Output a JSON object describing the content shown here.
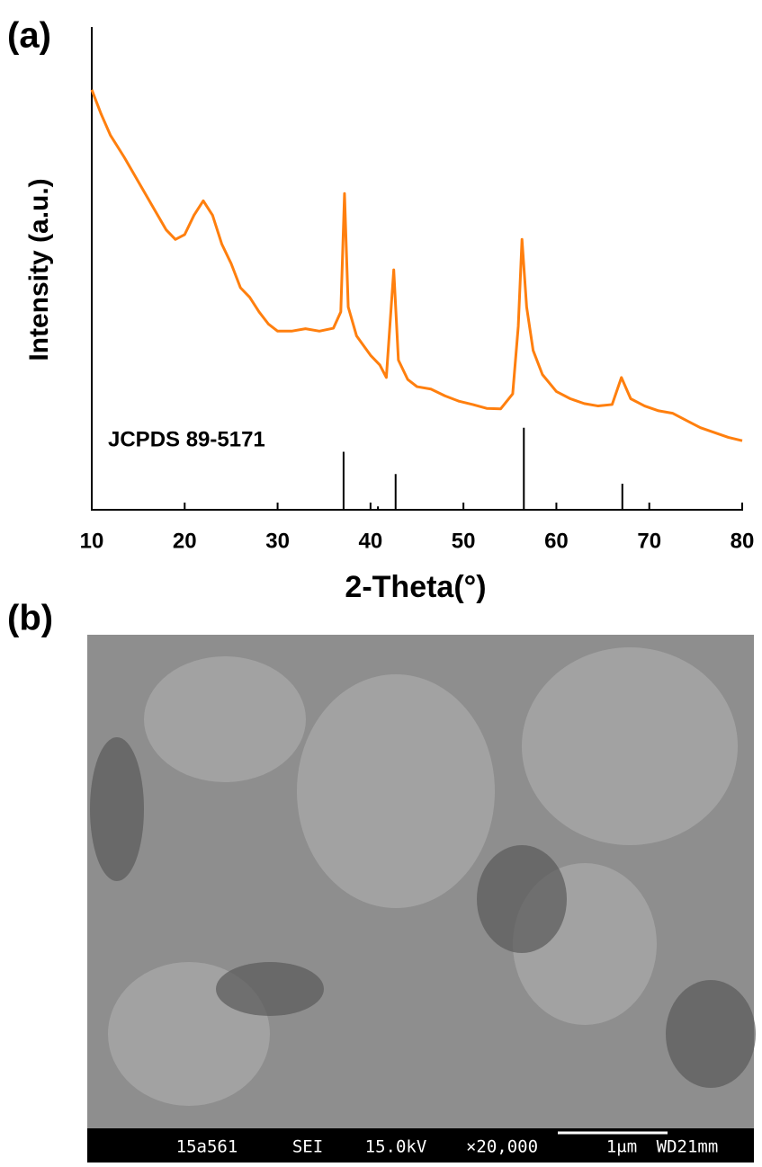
{
  "chart_data": {
    "type": "line",
    "xlabel": "2-Theta(°)",
    "ylabel": "Intensity (a.u.)",
    "xlim": [
      10,
      80
    ],
    "xticks": [
      10,
      20,
      30,
      40,
      50,
      60,
      70,
      80
    ],
    "ylim": [
      0,
      100
    ],
    "series": [
      {
        "color": "#ff7f0e",
        "x": [
          10,
          11,
          12,
          13.5,
          15,
          16.5,
          18,
          19,
          20,
          21,
          22,
          23,
          24,
          25,
          26,
          27,
          28,
          29,
          30,
          31.5,
          33,
          34.5,
          36,
          36.8,
          37.2,
          37.6,
          38.5,
          40,
          41,
          41.7,
          42.5,
          43,
          44,
          45,
          46.5,
          48,
          49.5,
          51,
          52.5,
          54,
          55.3,
          55.9,
          56.3,
          56.8,
          57.5,
          58.5,
          60,
          61.5,
          63,
          64.5,
          66,
          67,
          68,
          69.5,
          71,
          72.5,
          74,
          75.5,
          77,
          78.5,
          80
        ],
        "values": [
          87,
          82,
          77.6,
          73,
          68,
          63,
          58,
          56,
          57,
          61,
          64,
          61,
          55,
          51,
          46,
          44,
          41,
          38.5,
          37,
          37,
          37.5,
          37,
          37.6,
          41,
          65.5,
          42,
          36,
          32,
          30,
          27.4,
          49.7,
          31,
          27,
          25.5,
          25,
          23.6,
          22.5,
          21.8,
          21,
          20.9,
          24,
          38,
          56,
          42,
          33,
          28,
          24.5,
          23,
          22,
          21.5,
          21.8,
          27.4,
          23,
          21.5,
          20.5,
          20,
          18.5,
          17,
          16,
          15,
          14.3
        ]
      }
    ],
    "reference": {
      "label": "JCPDS 89-5171",
      "color": "#000000",
      "x": [
        37.1,
        40.8,
        42.7,
        56.5,
        67.1
      ],
      "values": [
        12,
        0.7,
        7.4,
        17,
        5.4
      ]
    }
  },
  "panels": {
    "a": "(a)",
    "b": "(b)"
  },
  "sem_image": {
    "info": [
      "15a561",
      "SEI",
      "15.0kV",
      "×20,000",
      "1μm",
      "WD21mm"
    ]
  }
}
